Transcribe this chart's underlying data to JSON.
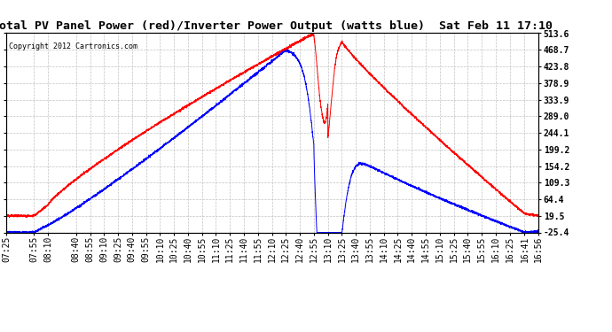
{
  "title": "Total PV Panel Power (red)/Inverter Power Output (watts blue)  Sat Feb 11 17:10",
  "copyright": "Copyright 2012 Cartronics.com",
  "ylim": [
    -25.4,
    513.6
  ],
  "yticks": [
    -25.4,
    19.5,
    64.4,
    109.3,
    154.2,
    199.2,
    244.1,
    289.0,
    333.9,
    378.9,
    423.8,
    468.7,
    513.6
  ],
  "ytick_labels": [
    "-25.4",
    "19.5",
    "64.4",
    "109.3",
    "154.2",
    "199.2",
    "244.1",
    "289.0",
    "333.9",
    "378.9",
    "423.8",
    "468.7",
    "513.6"
  ],
  "background_color": "#ffffff",
  "grid_color": "#bbbbbb",
  "title_fontsize": 9.5,
  "tick_fontsize": 7,
  "red_color": "#ff0000",
  "blue_color": "#0000ff",
  "time_labels": [
    "07:25",
    "07:55",
    "08:10",
    "08:40",
    "08:55",
    "09:10",
    "09:25",
    "09:40",
    "09:55",
    "10:10",
    "10:25",
    "10:40",
    "10:55",
    "11:10",
    "11:25",
    "11:40",
    "11:55",
    "12:10",
    "12:25",
    "12:40",
    "12:55",
    "13:10",
    "13:25",
    "13:40",
    "13:55",
    "14:10",
    "14:25",
    "14:40",
    "14:55",
    "15:10",
    "15:25",
    "15:40",
    "15:55",
    "16:10",
    "16:25",
    "16:41",
    "16:56"
  ]
}
